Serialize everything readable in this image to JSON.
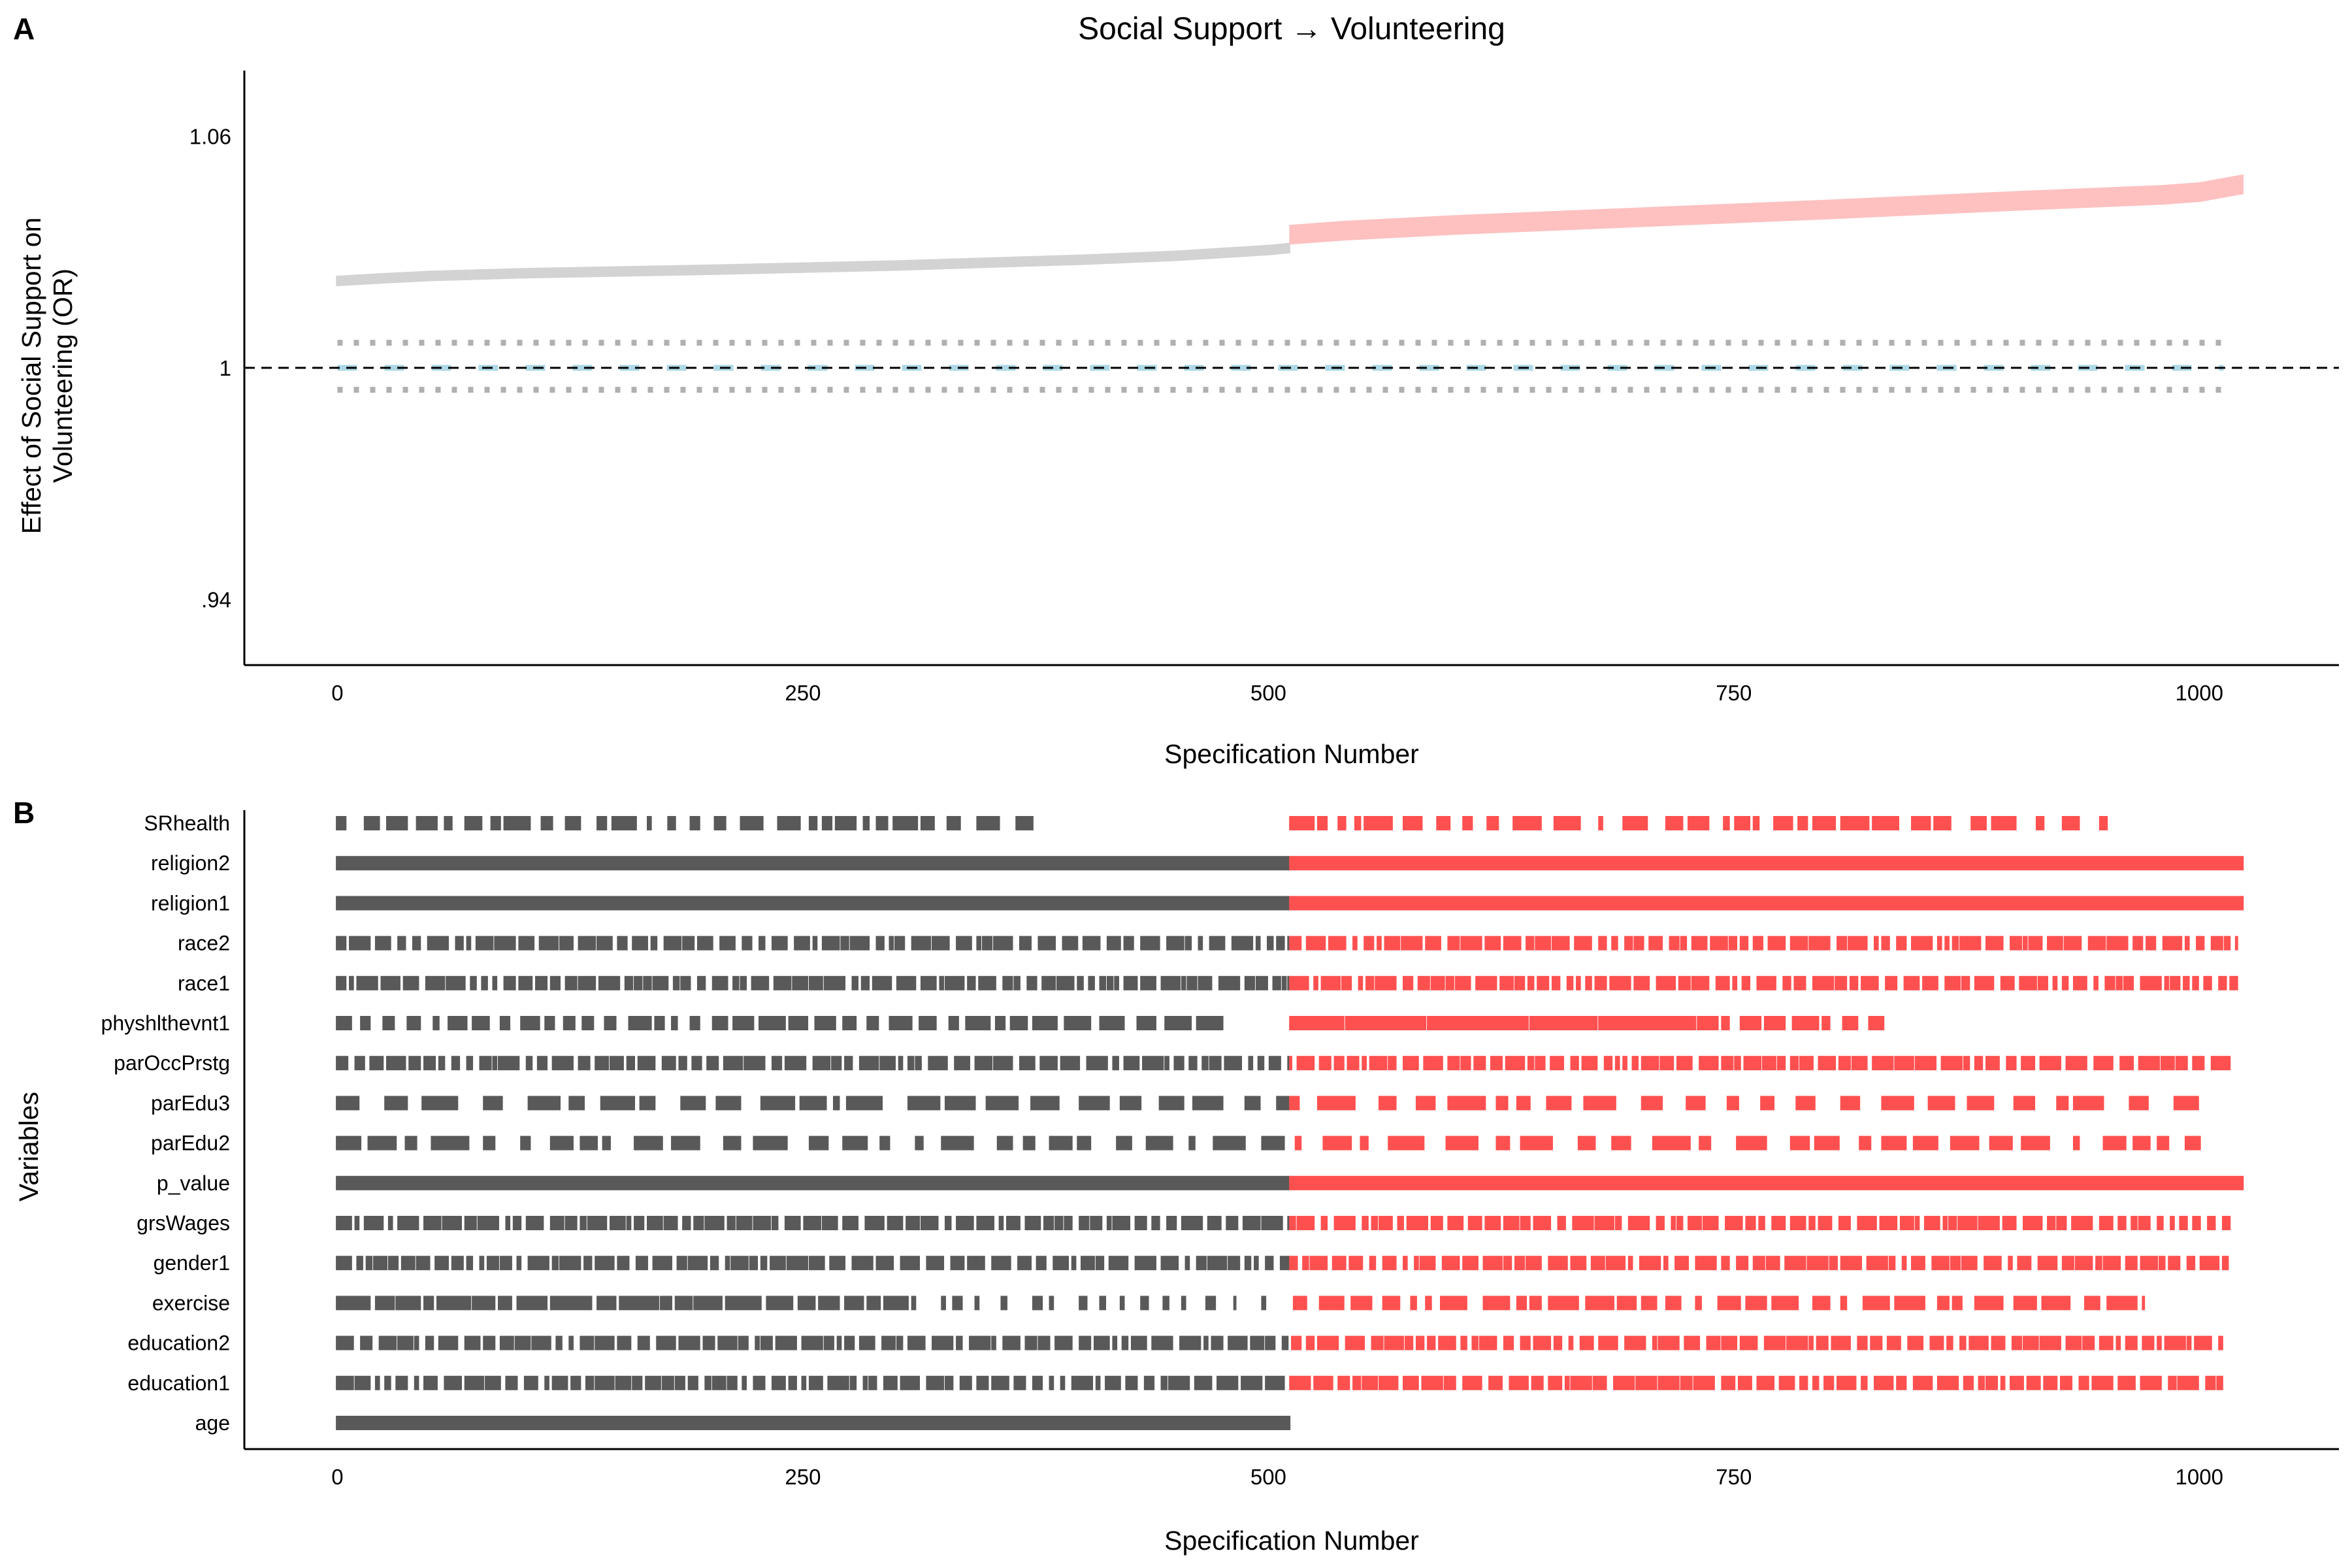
{
  "chart_data": [
    {
      "panel": "A",
      "type": "scatter",
      "title": "Social Support → Volunteering",
      "xlabel": "Specification Number",
      "ylabel": "Effect of Social Support on Volunteering (OR)",
      "ylabel_lines": [
        "Effect of Social Support on",
        "Volunteering (OR)"
      ],
      "xlim": [
        -50,
        1075
      ],
      "ylim": [
        0.923,
        1.077
      ],
      "xticks": [
        0,
        250,
        500,
        750,
        1000
      ],
      "xtick_labels": [
        "0",
        "250",
        "500",
        "750",
        "1000"
      ],
      "yticks": [
        0.94,
        1.0,
        1.06
      ],
      "ytick_labels": [
        ".94",
        "1",
        "1.06"
      ],
      "reference_line": 1.0,
      "n_specifications": 1024,
      "grid": false,
      "series": [
        {
          "group": "non-significant",
          "color": "#d3d3d3",
          "x": [
            0,
            25,
            50,
            100,
            200,
            300,
            400,
            450,
            500,
            511
          ],
          "y": [
            1.0225,
            1.0232,
            1.0238,
            1.0245,
            1.0254,
            1.0265,
            1.028,
            1.029,
            1.0305,
            1.031
          ]
        },
        {
          "group": "significant",
          "color": "#ffc0c0",
          "x": [
            512,
            540,
            600,
            700,
            800,
            900,
            980,
            1000,
            1023
          ],
          "y": [
            1.0345,
            1.0355,
            1.037,
            1.039,
            1.041,
            1.0432,
            1.0448,
            1.0455,
            1.0475
          ]
        }
      ],
      "null_band": {
        "center_color": "#add8e6",
        "bound_color": "#b0b0b0",
        "center": 1.0,
        "upper": 1.0065,
        "lower": 0.9943,
        "x_range": [
          0,
          1013
        ]
      }
    },
    {
      "panel": "B",
      "type": "table",
      "xlabel": "Specification Number",
      "ylabel": "Variables",
      "xlim": [
        -50,
        1075
      ],
      "xticks": [
        0,
        250,
        500,
        750,
        1000
      ],
      "xtick_labels": [
        "0",
        "250",
        "500",
        "750",
        "1000"
      ],
      "colors": {
        "non_significant": "#595959",
        "significant": "#ff5050"
      },
      "significance_threshold_index": 512,
      "variables": [
        {
          "name": "SRhealth",
          "pattern": "sparse_early",
          "end": 950
        },
        {
          "name": "religion2",
          "pattern": "full",
          "end": 1023
        },
        {
          "name": "religion1",
          "pattern": "full",
          "end": 1023
        },
        {
          "name": "race2",
          "pattern": "regular",
          "end": 1020
        },
        {
          "name": "race1",
          "pattern": "regular",
          "end": 1020
        },
        {
          "name": "physhlthevnt1",
          "pattern": "mid",
          "end": 830
        },
        {
          "name": "parOccPrstg",
          "pattern": "regular",
          "end": 1018
        },
        {
          "name": "parEdu3",
          "pattern": "blocky",
          "end": 1000
        },
        {
          "name": "parEdu2",
          "pattern": "blocky",
          "end": 1000
        },
        {
          "name": "p_value",
          "pattern": "full",
          "end": 1023
        },
        {
          "name": "grsWages",
          "pattern": "regular",
          "end": 1016
        },
        {
          "name": "gender1",
          "pattern": "regular",
          "end": 1015
        },
        {
          "name": "exercise",
          "pattern": "front",
          "end": 970
        },
        {
          "name": "education2",
          "pattern": "regular",
          "end": 1012
        },
        {
          "name": "education1",
          "pattern": "regular",
          "end": 1012
        },
        {
          "name": "age",
          "pattern": "age",
          "end": 511
        }
      ]
    }
  ],
  "panels": {
    "a_letter": "A",
    "b_letter": "B"
  },
  "colors": {
    "axis": "#000000",
    "ref_line": "#000000"
  }
}
